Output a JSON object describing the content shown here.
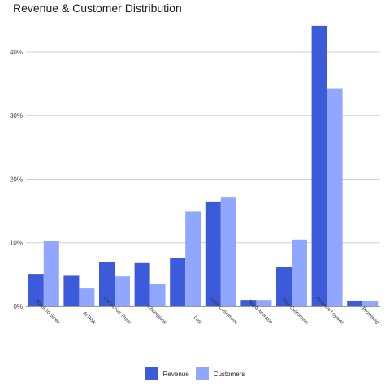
{
  "chart_data": {
    "type": "bar",
    "title": "Revenue & Customer Distribution",
    "xlabel": "",
    "ylabel": "",
    "ylim": [
      0,
      46
    ],
    "y_ticks": [
      0,
      10,
      20,
      30,
      40
    ],
    "y_tick_labels": [
      "0%",
      "10%",
      "20%",
      "30%",
      "40%"
    ],
    "grid": true,
    "legend_position": "bottom",
    "categories": [
      "About To Sleep",
      "At Risk",
      "Can't Lose Them",
      "Champions",
      "Lost",
      "Loyal Customers",
      "Need Attention",
      "New Customers",
      "Potential Loyalist",
      "Promising"
    ],
    "series": [
      {
        "name": "Revenue",
        "color": "#3b5bdb",
        "values": [
          5.1,
          4.8,
          7.0,
          6.8,
          7.6,
          16.5,
          1.0,
          6.2,
          44.1,
          0.9
        ]
      },
      {
        "name": "Customers",
        "color": "#91a7ff",
        "values": [
          10.3,
          2.8,
          4.7,
          3.5,
          14.9,
          17.1,
          1.0,
          10.5,
          34.3,
          0.9
        ]
      }
    ]
  }
}
